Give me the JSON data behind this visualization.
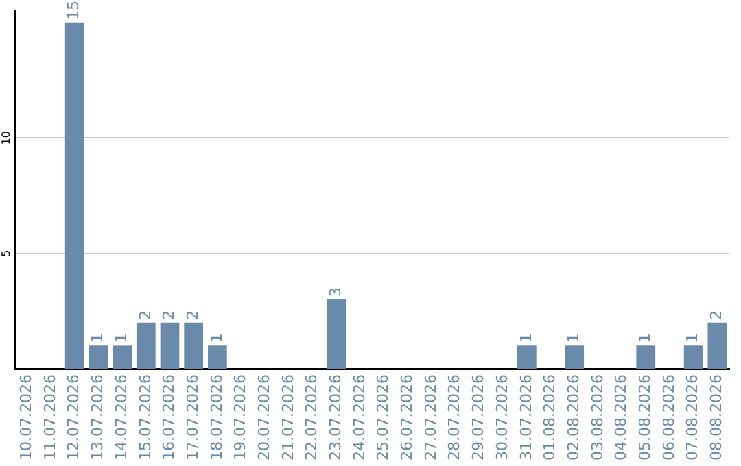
{
  "chart_data": {
    "type": "bar",
    "categories": [
      "10.07.2026",
      "11.07.2026",
      "12.07.2026",
      "13.07.2026",
      "14.07.2026",
      "15.07.2026",
      "16.07.2026",
      "17.07.2026",
      "18.07.2026",
      "19.07.2026",
      "20.07.2026",
      "21.07.2026",
      "22.07.2026",
      "23.07.2026",
      "24.07.2026",
      "25.07.2026",
      "26.07.2026",
      "27.07.2026",
      "28.07.2026",
      "29.07.2026",
      "30.07.2026",
      "31.07.2026",
      "01.08.2026",
      "02.08.2026",
      "03.08.2026",
      "04.08.2026",
      "05.08.2026",
      "06.08.2026",
      "07.08.2026",
      "08.08.2026"
    ],
    "values": [
      0,
      0,
      15,
      1,
      1,
      2,
      2,
      2,
      1,
      0,
      0,
      0,
      0,
      3,
      0,
      0,
      0,
      0,
      0,
      0,
      0,
      1,
      0,
      1,
      0,
      0,
      1,
      0,
      1,
      2
    ],
    "value_labels": [
      null,
      null,
      "15",
      "1",
      "1",
      "2",
      "2",
      "2",
      "1",
      null,
      null,
      null,
      null,
      "3",
      null,
      null,
      null,
      null,
      null,
      null,
      null,
      "1",
      null,
      "1",
      null,
      null,
      "1",
      null,
      "1",
      "2"
    ],
    "color": "#6a8aab",
    "ylim": [
      0,
      15.5
    ],
    "yticks": [
      5,
      10
    ],
    "grid": "y",
    "legend": false
  }
}
